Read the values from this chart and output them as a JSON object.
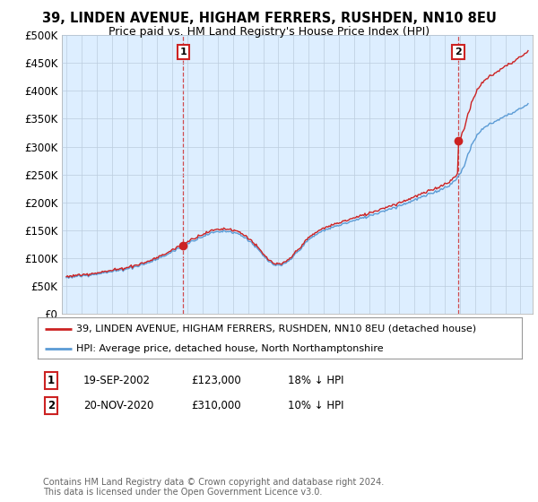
{
  "title": "39, LINDEN AVENUE, HIGHAM FERRERS, RUSHDEN, NN10 8EU",
  "subtitle": "Price paid vs. HM Land Registry's House Price Index (HPI)",
  "ylim": [
    0,
    500000
  ],
  "yticks": [
    0,
    50000,
    100000,
    150000,
    200000,
    250000,
    300000,
    350000,
    400000,
    450000,
    500000
  ],
  "ytick_labels": [
    "£0",
    "£50K",
    "£100K",
    "£150K",
    "£200K",
    "£250K",
    "£300K",
    "£350K",
    "£400K",
    "£450K",
    "£500K"
  ],
  "hpi_color": "#5b9bd5",
  "price_color": "#cc2222",
  "chart_bg_color": "#ddeeff",
  "purchase1": {
    "price": 123000,
    "x": 2002.72
  },
  "purchase2": {
    "price": 310000,
    "x": 2020.89
  },
  "legend_price_label": "39, LINDEN AVENUE, HIGHAM FERRERS, RUSHDEN, NN10 8EU (detached house)",
  "legend_hpi_label": "HPI: Average price, detached house, North Northamptonshire",
  "table_rows": [
    {
      "num": "1",
      "date": "19-SEP-2002",
      "price": "£123,000",
      "hpi": "18% ↓ HPI"
    },
    {
      "num": "2",
      "date": "20-NOV-2020",
      "price": "£310,000",
      "hpi": "10% ↓ HPI"
    }
  ],
  "footer": "Contains HM Land Registry data © Crown copyright and database right 2024.\nThis data is licensed under the Open Government Licence v3.0.",
  "background_color": "#ffffff",
  "grid_color": "#bbccdd"
}
